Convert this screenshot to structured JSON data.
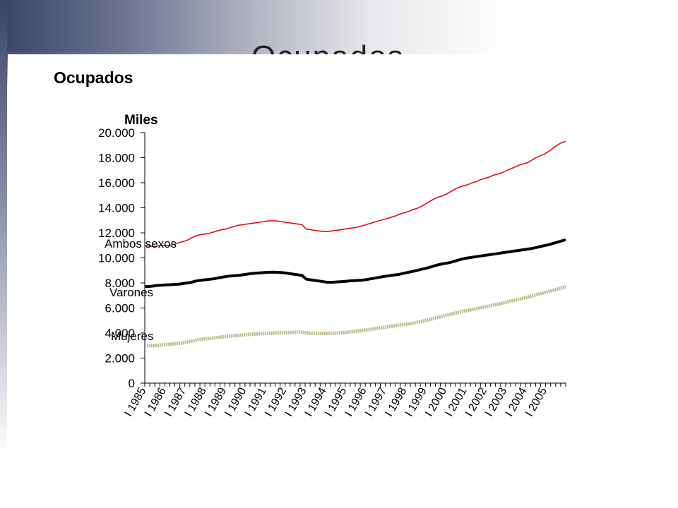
{
  "slide": {
    "title_fragment": "Ocupados"
  },
  "chart_data": {
    "type": "line",
    "title": "Ocupados",
    "ylabel": "Miles",
    "xlabel": "",
    "ylim": [
      0,
      20000
    ],
    "yticks": [
      "20.000",
      "18.000",
      "16.000",
      "14.000",
      "12.000",
      "10.000",
      "8.000",
      "6.000",
      "4.000",
      "2.000",
      "0"
    ],
    "x_tick_labels": [
      "I 1985",
      "I 1986",
      "I 1987",
      "I 1988",
      "I 1989",
      "I 1990",
      "I 1991",
      "I 1992",
      "I 1993",
      "I 1994",
      "I 1995",
      "I 1996",
      "I 1997",
      "I 1998",
      "I 1999",
      "I 2000",
      "I 2001",
      "I 2002",
      "I 2003",
      "I 2004",
      "I 2005"
    ],
    "legend_placement": "inline labels",
    "series": [
      {
        "name": "Ambos sexos",
        "color": "#e01010",
        "values": [
          11000,
          10950,
          10900,
          10950,
          11000,
          10980,
          11000,
          11100,
          11200,
          11300,
          11400,
          11600,
          11750,
          11850,
          11900,
          11950,
          12050,
          12150,
          12250,
          12300,
          12400,
          12500,
          12600,
          12650,
          12700,
          12750,
          12800,
          12850,
          12900,
          12950,
          12950,
          12950,
          12900,
          12850,
          12800,
          12750,
          12700,
          12650,
          12300,
          12250,
          12200,
          12150,
          12100,
          12100,
          12150,
          12200,
          12250,
          12300,
          12350,
          12400,
          12450,
          12550,
          12650,
          12750,
          12850,
          12950,
          13050,
          13150,
          13250,
          13350,
          13500,
          13600,
          13700,
          13850,
          13950,
          14100,
          14300,
          14500,
          14700,
          14850,
          14950,
          15100,
          15300,
          15500,
          15650,
          15750,
          15850,
          16000,
          16100,
          16250,
          16350,
          16450,
          16600,
          16700,
          16800,
          16950,
          17100,
          17250,
          17400,
          17500,
          17600,
          17800,
          18000,
          18150,
          18300,
          18500,
          18750,
          19000,
          19200,
          19300
        ]
      },
      {
        "name": "Varones",
        "color": "#000000",
        "values": [
          7700,
          7720,
          7750,
          7800,
          7820,
          7850,
          7860,
          7880,
          7900,
          7950,
          8000,
          8050,
          8150,
          8200,
          8250,
          8280,
          8320,
          8380,
          8450,
          8500,
          8550,
          8580,
          8600,
          8650,
          8700,
          8750,
          8780,
          8800,
          8820,
          8850,
          8860,
          8850,
          8830,
          8800,
          8750,
          8700,
          8650,
          8600,
          8300,
          8250,
          8200,
          8150,
          8100,
          8050,
          8050,
          8080,
          8100,
          8120,
          8150,
          8180,
          8200,
          8220,
          8260,
          8320,
          8380,
          8440,
          8500,
          8550,
          8600,
          8650,
          8700,
          8780,
          8850,
          8920,
          9000,
          9080,
          9150,
          9250,
          9350,
          9450,
          9520,
          9580,
          9650,
          9750,
          9850,
          9930,
          10000,
          10050,
          10100,
          10150,
          10200,
          10250,
          10300,
          10350,
          10400,
          10450,
          10500,
          10550,
          10600,
          10650,
          10700,
          10750,
          10820,
          10900,
          10980,
          11050,
          11150,
          11250,
          11350,
          11450
        ]
      },
      {
        "name": "Mujeres",
        "color": "#bdb98a",
        "values": [
          3000,
          2990,
          3000,
          3020,
          3050,
          3080,
          3100,
          3150,
          3180,
          3220,
          3280,
          3350,
          3420,
          3480,
          3530,
          3570,
          3600,
          3640,
          3680,
          3720,
          3750,
          3780,
          3810,
          3840,
          3870,
          3900,
          3920,
          3940,
          3960,
          3980,
          4000,
          4010,
          4020,
          4030,
          4040,
          4050,
          4060,
          4070,
          4000,
          3990,
          3980,
          3970,
          3960,
          3970,
          3980,
          3990,
          4010,
          4040,
          4080,
          4120,
          4160,
          4200,
          4240,
          4290,
          4340,
          4390,
          4440,
          4490,
          4540,
          4590,
          4640,
          4690,
          4740,
          4790,
          4850,
          4920,
          5000,
          5080,
          5170,
          5260,
          5350,
          5430,
          5510,
          5590,
          5670,
          5740,
          5810,
          5880,
          5950,
          6020,
          6090,
          6160,
          6230,
          6300,
          6380,
          6460,
          6540,
          6620,
          6700,
          6780,
          6860,
          6950,
          7040,
          7130,
          7220,
          7310,
          7400,
          7500,
          7600,
          7700
        ]
      }
    ]
  }
}
